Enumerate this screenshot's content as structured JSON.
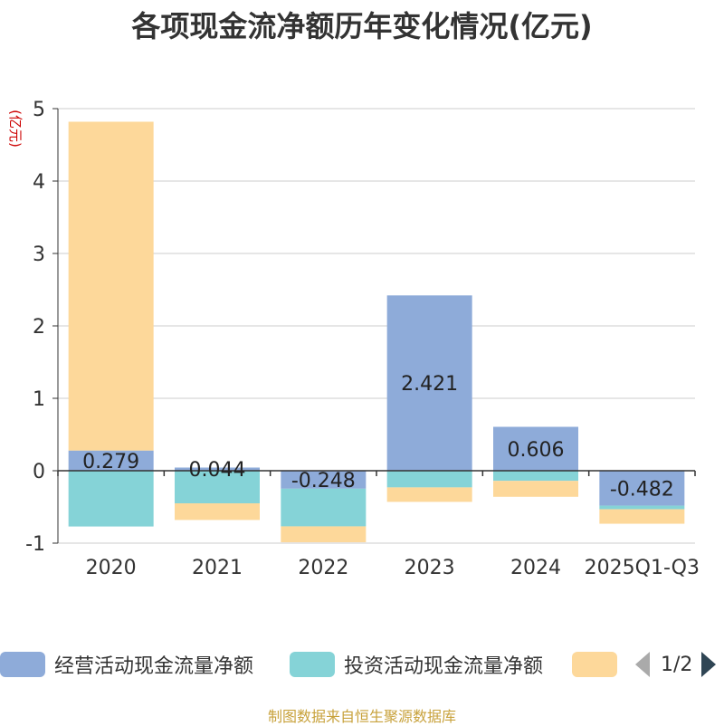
{
  "title": "各项现金流净额历年变化情况(亿元)",
  "source": "制图数据来自恒生聚源数据库",
  "legend": {
    "page": "1/2",
    "items": [
      {
        "label": "经营活动现金流量净额",
        "color": "#8eabd9"
      },
      {
        "label": "投资活动现金流量净额",
        "color": "#85d3d7"
      },
      {
        "label": "",
        "color": "#fdd89a"
      }
    ]
  },
  "chart_data": {
    "type": "bar",
    "stacked": true,
    "ylabel": "(亿元)",
    "ylim": [
      -1,
      5
    ],
    "yticks": [
      -1,
      0,
      1,
      2,
      3,
      4,
      5
    ],
    "grid": true,
    "legend_position": "bottom",
    "categories": [
      "2020",
      "2021",
      "2022",
      "2023",
      "2024",
      "2025Q1-Q3"
    ],
    "series": [
      {
        "name": "经营活动现金流量净额",
        "color": "#8eabd9",
        "values": [
          0.279,
          0.044,
          -0.248,
          2.421,
          0.606,
          -0.482
        ],
        "labels": [
          "0.279",
          "0.044",
          "-0.248",
          "2.421",
          "0.606",
          "-0.482"
        ]
      },
      {
        "name": "投资活动现金流量净额",
        "color": "#85d3d7",
        "values": [
          -0.77,
          -0.45,
          -0.52,
          -0.23,
          -0.14,
          -0.05
        ]
      },
      {
        "color": "#fdd89a",
        "values": [
          4.54,
          -0.23,
          -0.22,
          -0.2,
          -0.22,
          -0.2
        ]
      }
    ]
  }
}
